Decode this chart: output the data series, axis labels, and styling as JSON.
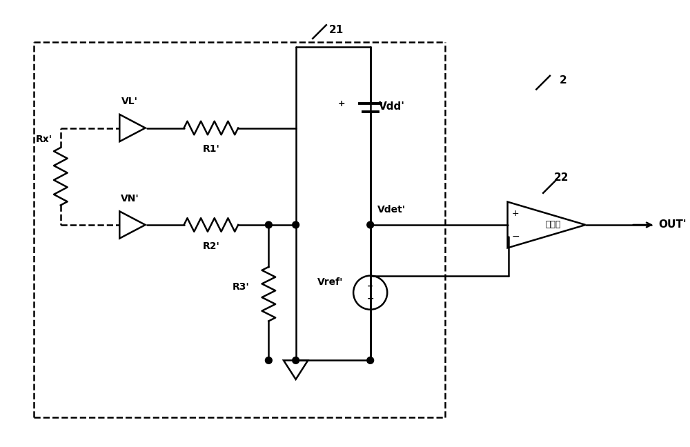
{
  "background_color": "#ffffff",
  "line_color": "#000000",
  "figsize": [
    10.0,
    6.48
  ],
  "dpi": 100,
  "label_21": "21",
  "label_2": "2",
  "label_22": "22",
  "label_VL": "VL'",
  "label_VN": "VN'",
  "label_Rx": "Rx'",
  "label_R1": "R1'",
  "label_R2": "R2'",
  "label_R3": "R3'",
  "label_Vdd": "Vdd'",
  "label_Vdet": "Vdet'",
  "label_Vref": "Vref'",
  "label_comparator": "比较器",
  "label_OUT": "OUT'"
}
